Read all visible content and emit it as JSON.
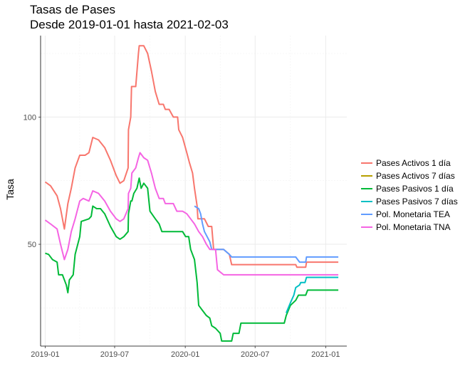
{
  "chart_data": {
    "type": "line",
    "title": "Tasas de Pases",
    "subtitle": "Desde 2019-01-01 hasta 2021-02-03",
    "xlabel": "",
    "ylabel": "Tasa",
    "xlim": [
      "2018-12-20",
      "2021-02-25"
    ],
    "ylim": [
      10,
      132
    ],
    "x_ticks": [
      "2019-01-01",
      "2019-07-01",
      "2020-01-01",
      "2020-07-01",
      "2021-01-01"
    ],
    "x_tick_labels": [
      "2019-01",
      "2019-07",
      "2020-01",
      "2020-07",
      "2021-01"
    ],
    "y_ticks": [
      50,
      100
    ],
    "y_tick_labels": [
      "50",
      "100"
    ],
    "grid": true,
    "legend_position": "right",
    "series": [
      {
        "name": "Pases Activos 1 día",
        "color": "#F8766D",
        "points": [
          [
            "2019-01-01",
            74.5
          ],
          [
            "2019-01-15",
            73
          ],
          [
            "2019-02-01",
            69
          ],
          [
            "2019-02-10",
            64
          ],
          [
            "2019-02-20",
            56
          ],
          [
            "2019-03-01",
            66
          ],
          [
            "2019-03-10",
            72
          ],
          [
            "2019-03-20",
            80
          ],
          [
            "2019-04-01",
            85
          ],
          [
            "2019-04-15",
            85
          ],
          [
            "2019-04-25",
            86
          ],
          [
            "2019-05-05",
            92
          ],
          [
            "2019-05-20",
            91
          ],
          [
            "2019-06-05",
            88
          ],
          [
            "2019-06-20",
            83
          ],
          [
            "2019-07-05",
            77
          ],
          [
            "2019-07-15",
            74
          ],
          [
            "2019-07-25",
            75
          ],
          [
            "2019-08-05",
            80
          ],
          [
            "2019-08-06",
            95
          ],
          [
            "2019-08-12",
            100
          ],
          [
            "2019-08-14",
            112
          ],
          [
            "2019-08-25",
            112
          ],
          [
            "2019-09-01",
            125
          ],
          [
            "2019-09-03",
            128
          ],
          [
            "2019-09-15",
            128
          ],
          [
            "2019-09-25",
            125
          ],
          [
            "2019-10-05",
            118
          ],
          [
            "2019-10-15",
            110
          ],
          [
            "2019-10-25",
            105
          ],
          [
            "2019-11-05",
            105
          ],
          [
            "2019-11-10",
            103
          ],
          [
            "2019-11-20",
            103
          ],
          [
            "2019-12-01",
            100
          ],
          [
            "2019-12-12",
            100
          ],
          [
            "2019-12-15",
            95
          ],
          [
            "2019-12-25",
            92
          ],
          [
            "2020-01-05",
            86
          ],
          [
            "2020-01-12",
            82
          ],
          [
            "2020-01-20",
            78
          ],
          [
            "2020-01-25",
            72
          ],
          [
            "2020-02-01",
            65
          ],
          [
            "2020-02-03",
            60
          ],
          [
            "2020-02-20",
            60
          ],
          [
            "2020-03-01",
            57
          ],
          [
            "2020-03-10",
            57
          ],
          [
            "2020-03-15",
            48
          ],
          [
            "2020-04-10",
            48
          ],
          [
            "2020-04-25",
            46
          ],
          [
            "2020-05-01",
            42
          ],
          [
            "2020-10-15",
            42
          ],
          [
            "2020-10-18",
            41
          ],
          [
            "2020-11-10",
            41
          ],
          [
            "2020-11-12",
            43
          ],
          [
            "2021-02-03",
            43
          ]
        ]
      },
      {
        "name": "Pases Activos 7 días",
        "color": "#B79F00",
        "points": []
      },
      {
        "name": "Pases Pasivos 1 día",
        "color": "#00BA38",
        "points": [
          [
            "2019-01-01",
            46.5
          ],
          [
            "2019-01-10",
            46
          ],
          [
            "2019-01-20",
            44
          ],
          [
            "2019-02-01",
            43
          ],
          [
            "2019-02-05",
            38
          ],
          [
            "2019-02-15",
            38
          ],
          [
            "2019-02-25",
            34
          ],
          [
            "2019-03-01",
            31
          ],
          [
            "2019-03-05",
            36
          ],
          [
            "2019-03-15",
            38
          ],
          [
            "2019-03-20",
            46
          ],
          [
            "2019-04-01",
            53
          ],
          [
            "2019-04-05",
            59
          ],
          [
            "2019-04-25",
            60
          ],
          [
            "2019-05-01",
            61
          ],
          [
            "2019-05-05",
            65
          ],
          [
            "2019-05-15",
            64
          ],
          [
            "2019-05-25",
            64
          ],
          [
            "2019-06-05",
            62
          ],
          [
            "2019-06-20",
            57
          ],
          [
            "2019-07-05",
            53
          ],
          [
            "2019-07-15",
            52
          ],
          [
            "2019-07-25",
            53
          ],
          [
            "2019-08-05",
            55
          ],
          [
            "2019-08-06",
            62
          ],
          [
            "2019-08-12",
            67
          ],
          [
            "2019-08-15",
            67
          ],
          [
            "2019-08-20",
            70
          ],
          [
            "2019-08-28",
            72
          ],
          [
            "2019-09-03",
            76
          ],
          [
            "2019-09-08",
            72
          ],
          [
            "2019-09-15",
            74
          ],
          [
            "2019-09-25",
            72
          ],
          [
            "2019-10-01",
            63
          ],
          [
            "2019-10-15",
            60
          ],
          [
            "2019-10-25",
            58
          ],
          [
            "2019-11-01",
            55
          ],
          [
            "2019-12-25",
            55
          ],
          [
            "2020-01-02",
            53
          ],
          [
            "2020-01-10",
            53
          ],
          [
            "2020-01-15",
            48
          ],
          [
            "2020-01-25",
            44
          ],
          [
            "2020-02-01",
            35
          ],
          [
            "2020-02-05",
            26
          ],
          [
            "2020-02-15",
            24
          ],
          [
            "2020-02-25",
            22
          ],
          [
            "2020-03-05",
            21
          ],
          [
            "2020-03-10",
            18
          ],
          [
            "2020-03-20",
            17
          ],
          [
            "2020-04-01",
            15
          ],
          [
            "2020-04-05",
            12
          ],
          [
            "2020-05-01",
            12
          ],
          [
            "2020-05-05",
            15
          ],
          [
            "2020-05-20",
            15
          ],
          [
            "2020-05-25",
            19
          ],
          [
            "2020-09-15",
            19
          ],
          [
            "2020-09-20",
            22
          ],
          [
            "2020-10-01",
            26
          ],
          [
            "2020-10-15",
            28
          ],
          [
            "2020-10-22",
            30
          ],
          [
            "2020-11-10",
            30
          ],
          [
            "2020-11-15",
            32
          ],
          [
            "2021-02-03",
            32
          ]
        ]
      },
      {
        "name": "Pases Pasivos 7 días",
        "color": "#00BFC4",
        "points": [
          [
            "2020-09-20",
            23
          ],
          [
            "2020-10-01",
            27
          ],
          [
            "2020-10-10",
            30
          ],
          [
            "2020-10-15",
            33
          ],
          [
            "2020-10-25",
            34
          ],
          [
            "2020-10-28",
            35
          ],
          [
            "2020-11-08",
            35
          ],
          [
            "2020-11-12",
            37
          ],
          [
            "2021-02-03",
            37
          ]
        ]
      },
      {
        "name": "Pol. Monetaria TEA",
        "color": "#619CFF",
        "points": [
          [
            "2020-01-25",
            65
          ],
          [
            "2020-02-05",
            64
          ],
          [
            "2020-02-10",
            62
          ],
          [
            "2020-02-15",
            58
          ],
          [
            "2020-02-20",
            55
          ],
          [
            "2020-03-05",
            51
          ],
          [
            "2020-03-10",
            48
          ],
          [
            "2020-04-10",
            48
          ],
          [
            "2020-04-25",
            46
          ],
          [
            "2020-05-01",
            45
          ],
          [
            "2020-10-15",
            45
          ],
          [
            "2020-10-25",
            43
          ],
          [
            "2020-11-10",
            43
          ],
          [
            "2020-11-12",
            45
          ],
          [
            "2021-02-03",
            45
          ]
        ]
      },
      {
        "name": "Pol. Monetaria TNA",
        "color": "#F564E3",
        "points": [
          [
            "2019-01-01",
            59.5
          ],
          [
            "2019-01-15",
            58
          ],
          [
            "2019-02-01",
            56
          ],
          [
            "2019-02-10",
            50
          ],
          [
            "2019-02-20",
            44
          ],
          [
            "2019-03-01",
            48
          ],
          [
            "2019-03-10",
            55
          ],
          [
            "2019-03-20",
            60
          ],
          [
            "2019-04-01",
            67
          ],
          [
            "2019-04-10",
            68
          ],
          [
            "2019-04-25",
            67
          ],
          [
            "2019-05-05",
            71
          ],
          [
            "2019-05-20",
            70
          ],
          [
            "2019-06-05",
            67
          ],
          [
            "2019-06-20",
            63
          ],
          [
            "2019-07-05",
            60
          ],
          [
            "2019-07-15",
            59
          ],
          [
            "2019-07-25",
            60
          ],
          [
            "2019-08-05",
            64
          ],
          [
            "2019-08-06",
            70
          ],
          [
            "2019-08-12",
            72
          ],
          [
            "2019-08-15",
            78
          ],
          [
            "2019-08-25",
            80
          ],
          [
            "2019-09-01",
            84
          ],
          [
            "2019-09-05",
            86
          ],
          [
            "2019-09-15",
            84
          ],
          [
            "2019-09-25",
            83
          ],
          [
            "2019-10-05",
            78
          ],
          [
            "2019-10-15",
            72
          ],
          [
            "2019-10-25",
            68
          ],
          [
            "2019-11-05",
            68
          ],
          [
            "2019-11-10",
            66
          ],
          [
            "2019-12-01",
            66
          ],
          [
            "2019-12-10",
            63
          ],
          [
            "2019-12-25",
            63
          ],
          [
            "2020-01-05",
            62
          ],
          [
            "2020-01-15",
            60
          ],
          [
            "2020-01-25",
            58
          ],
          [
            "2020-02-05",
            55
          ],
          [
            "2020-02-15",
            53
          ],
          [
            "2020-02-25",
            50
          ],
          [
            "2020-03-05",
            48
          ],
          [
            "2020-03-20",
            48
          ],
          [
            "2020-03-25",
            40
          ],
          [
            "2020-04-10",
            38
          ],
          [
            "2021-02-03",
            38
          ]
        ]
      }
    ]
  }
}
